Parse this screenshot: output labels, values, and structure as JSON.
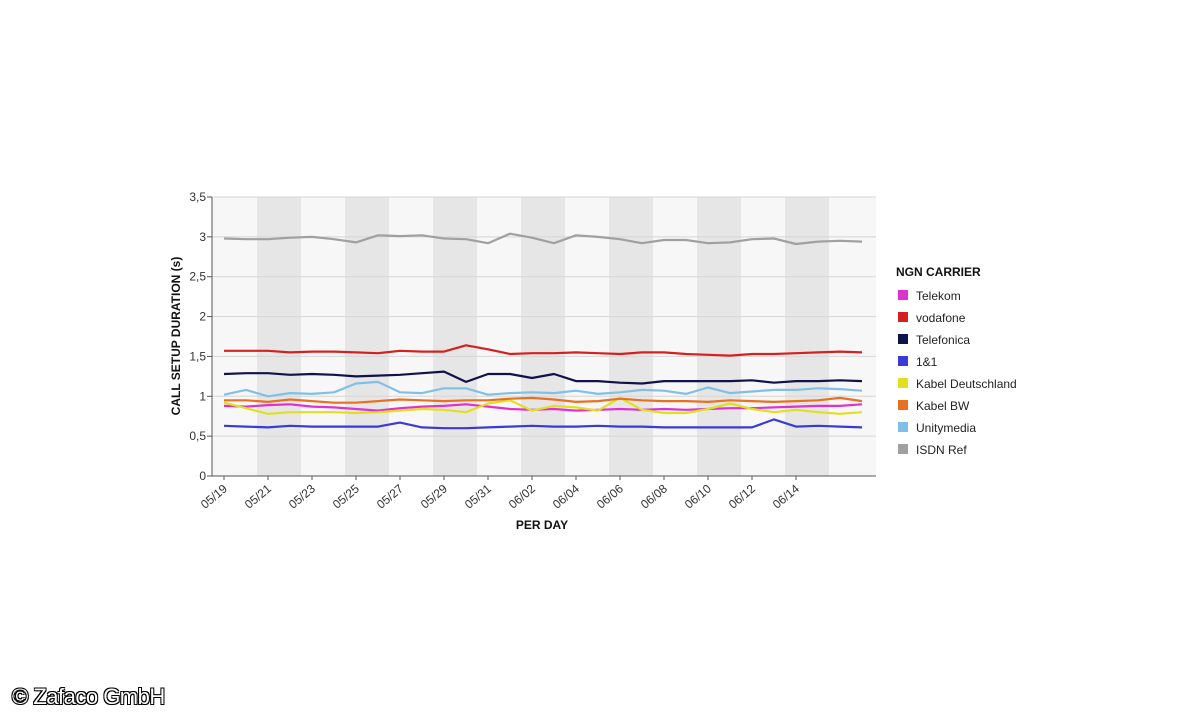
{
  "chart_data": {
    "type": "line",
    "xlabel": "PER DAY",
    "ylabel": "CALL SETUP DURATION (s)",
    "ylim": [
      0,
      3.5
    ],
    "yticks": [
      "0",
      "0,5",
      "1",
      "1,5",
      "2",
      "2,5",
      "3",
      "3,5"
    ],
    "ytick_values": [
      0,
      0.5,
      1,
      1.5,
      2,
      2.5,
      3,
      3.5
    ],
    "x_tick_labels": [
      "05/19",
      "05/21",
      "05/23",
      "05/25",
      "05/27",
      "05/29",
      "05/31",
      "06/02",
      "06/04",
      "06/06",
      "06/08",
      "06/10",
      "06/12",
      "06/14"
    ],
    "legend_title": "NGN CARRIER",
    "legend_position": "right",
    "grid": true,
    "series": [
      {
        "name": "Telekom",
        "color": "#e030d0",
        "values": [
          0.88,
          0.87,
          0.89,
          0.9,
          0.87,
          0.86,
          0.84,
          0.82,
          0.85,
          0.87,
          0.88,
          0.9,
          0.87,
          0.84,
          0.83,
          0.84,
          0.82,
          0.83,
          0.84,
          0.83,
          0.84,
          0.83,
          0.84,
          0.85,
          0.85,
          0.86,
          0.87,
          0.88,
          0.88,
          0.9
        ]
      },
      {
        "name": "vodafone",
        "color": "#d62020",
        "values": [
          1.57,
          1.57,
          1.57,
          1.55,
          1.56,
          1.56,
          1.55,
          1.54,
          1.57,
          1.56,
          1.56,
          1.64,
          1.59,
          1.53,
          1.54,
          1.54,
          1.55,
          1.54,
          1.53,
          1.55,
          1.55,
          1.53,
          1.52,
          1.51,
          1.53,
          1.53,
          1.54,
          1.55,
          1.56,
          1.55
        ]
      },
      {
        "name": "Telefonica",
        "color": "#10124a",
        "values": [
          1.28,
          1.29,
          1.29,
          1.27,
          1.28,
          1.27,
          1.25,
          1.26,
          1.27,
          1.29,
          1.31,
          1.18,
          1.28,
          1.28,
          1.23,
          1.28,
          1.19,
          1.19,
          1.17,
          1.16,
          1.19,
          1.19,
          1.19,
          1.19,
          1.2,
          1.17,
          1.19,
          1.19,
          1.2,
          1.19
        ]
      },
      {
        "name": "1&1",
        "color": "#3a3ad6",
        "values": [
          0.63,
          0.62,
          0.61,
          0.63,
          0.62,
          0.62,
          0.62,
          0.62,
          0.67,
          0.61,
          0.6,
          0.6,
          0.61,
          0.62,
          0.63,
          0.62,
          0.62,
          0.63,
          0.62,
          0.62,
          0.61,
          0.61,
          0.61,
          0.61,
          0.61,
          0.71,
          0.62,
          0.63,
          0.62,
          0.61
        ]
      },
      {
        "name": "Kabel Deutschland",
        "color": "#e0e020",
        "values": [
          0.92,
          0.85,
          0.78,
          0.8,
          0.8,
          0.8,
          0.79,
          0.8,
          0.82,
          0.84,
          0.83,
          0.8,
          0.91,
          0.95,
          0.82,
          0.88,
          0.86,
          0.82,
          0.98,
          0.83,
          0.79,
          0.79,
          0.84,
          0.91,
          0.84,
          0.8,
          0.83,
          0.8,
          0.78,
          0.8
        ]
      },
      {
        "name": "Kabel BW",
        "color": "#e87020",
        "values": [
          0.95,
          0.95,
          0.93,
          0.96,
          0.94,
          0.92,
          0.92,
          0.94,
          0.96,
          0.95,
          0.94,
          0.95,
          0.95,
          0.97,
          0.98,
          0.96,
          0.93,
          0.94,
          0.97,
          0.95,
          0.94,
          0.94,
          0.93,
          0.95,
          0.94,
          0.93,
          0.94,
          0.95,
          0.98,
          0.94
        ]
      },
      {
        "name": "Unitymedia",
        "color": "#80c0e8",
        "values": [
          1.02,
          1.08,
          1.0,
          1.04,
          1.03,
          1.05,
          1.16,
          1.18,
          1.05,
          1.04,
          1.1,
          1.1,
          1.02,
          1.04,
          1.05,
          1.04,
          1.07,
          1.03,
          1.05,
          1.08,
          1.07,
          1.03,
          1.11,
          1.04,
          1.06,
          1.08,
          1.08,
          1.1,
          1.09,
          1.07
        ]
      },
      {
        "name": "ISDN Ref",
        "color": "#a0a0a0",
        "values": [
          2.98,
          2.97,
          2.97,
          2.99,
          3.0,
          2.97,
          2.93,
          3.02,
          3.01,
          3.02,
          2.98,
          2.97,
          2.92,
          3.04,
          2.99,
          2.92,
          3.02,
          3.0,
          2.97,
          2.92,
          2.96,
          2.96,
          2.92,
          2.93,
          2.97,
          2.98,
          2.91,
          2.94,
          2.95,
          2.94
        ]
      }
    ]
  },
  "copyright": "© Zafaco GmbH"
}
